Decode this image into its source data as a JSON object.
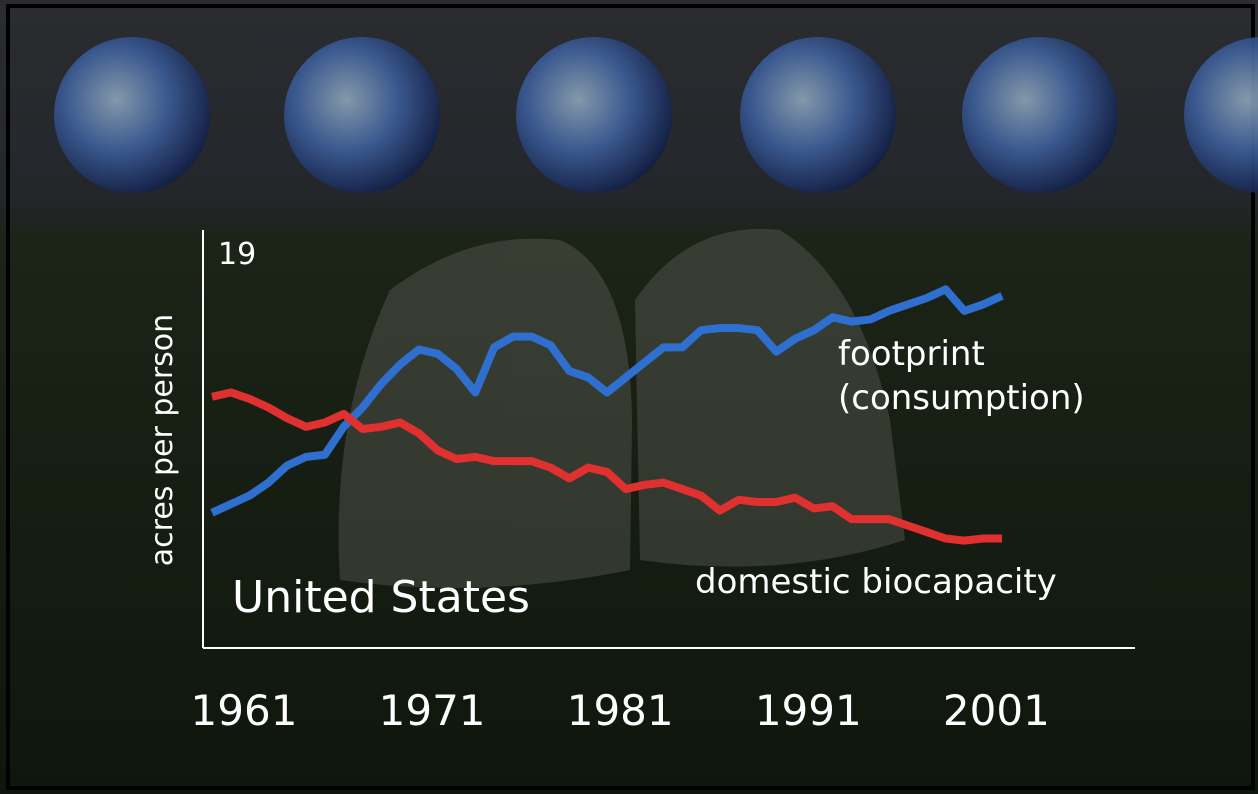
{
  "chart_data": {
    "type": "line",
    "y_label": "acres per person",
    "annotation": "United States",
    "x": [
      1961,
      1962,
      1963,
      1964,
      1965,
      1966,
      1967,
      1968,
      1969,
      1970,
      1971,
      1972,
      1973,
      1974,
      1975,
      1976,
      1977,
      1978,
      1979,
      1980,
      1981,
      1982,
      1983,
      1984,
      1985,
      1986,
      1987,
      1988,
      1989,
      1990,
      1991,
      1992,
      1993,
      1994,
      1995,
      1996,
      1997,
      1998,
      1999,
      2000,
      2001,
      2002,
      2003
    ],
    "series": [
      {
        "name": "footprint (consumption)",
        "color": "#2f6fd0",
        "values": [
          6.3,
          6.7,
          7.1,
          7.7,
          8.5,
          8.9,
          9.0,
          10.3,
          11.2,
          12.3,
          13.2,
          13.9,
          13.7,
          13.0,
          11.9,
          14.0,
          14.5,
          14.5,
          14.1,
          12.9,
          12.6,
          11.9,
          12.6,
          13.3,
          14.0,
          14.0,
          14.8,
          14.9,
          14.9,
          14.8,
          13.8,
          14.4,
          14.8,
          15.4,
          15.2,
          15.3,
          15.7,
          16.0,
          16.3,
          16.7,
          15.7,
          16.0,
          16.4
        ]
      },
      {
        "name": "domestic biocapacity",
        "color": "#e03030",
        "values": [
          11.7,
          11.9,
          11.6,
          11.2,
          10.7,
          10.3,
          10.5,
          10.9,
          10.2,
          10.3,
          10.5,
          10.0,
          9.2,
          8.8,
          8.9,
          8.7,
          8.7,
          8.7,
          8.4,
          7.9,
          8.4,
          8.2,
          7.4,
          7.6,
          7.7,
          7.4,
          7.1,
          6.4,
          6.9,
          6.8,
          6.8,
          7.0,
          6.5,
          6.6,
          6.0,
          6.0,
          6.0,
          5.7,
          5.4,
          5.1,
          5.0,
          5.1,
          5.1
        ]
      }
    ],
    "xlim": [
      1961,
      2003
    ],
    "xticks": [
      1961,
      1971,
      1981,
      1991,
      2001
    ],
    "ylim": [
      0,
      19
    ],
    "yticks": [
      19
    ]
  }
}
